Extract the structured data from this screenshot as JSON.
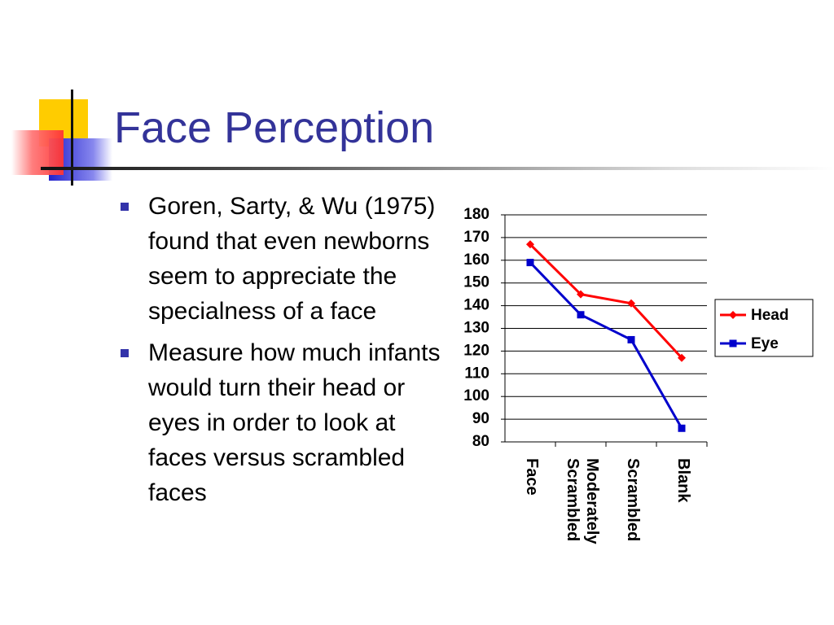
{
  "title": "Face Perception",
  "bullets": [
    "Goren, Sarty, & Wu (1975) found that even newborns seem to appreciate the specialness of a face",
    "Measure how much infants would turn their head or eyes in order to look at faces versus scrambled faces"
  ],
  "chart_data": {
    "type": "line",
    "categories": [
      "Face",
      "Moderately Scrambled",
      "Scrambled",
      "Blank"
    ],
    "series": [
      {
        "name": "Head",
        "color": "#ff0000",
        "marker": "diamond",
        "values": [
          167,
          145,
          141,
          117
        ]
      },
      {
        "name": "Eye",
        "color": "#0000cc",
        "marker": "square",
        "values": [
          159,
          136,
          125,
          86
        ]
      }
    ],
    "ylim": [
      80,
      180
    ],
    "yticks": [
      80,
      90,
      100,
      110,
      120,
      130,
      140,
      150,
      160,
      170,
      180
    ],
    "grid": true,
    "legend": "right"
  }
}
